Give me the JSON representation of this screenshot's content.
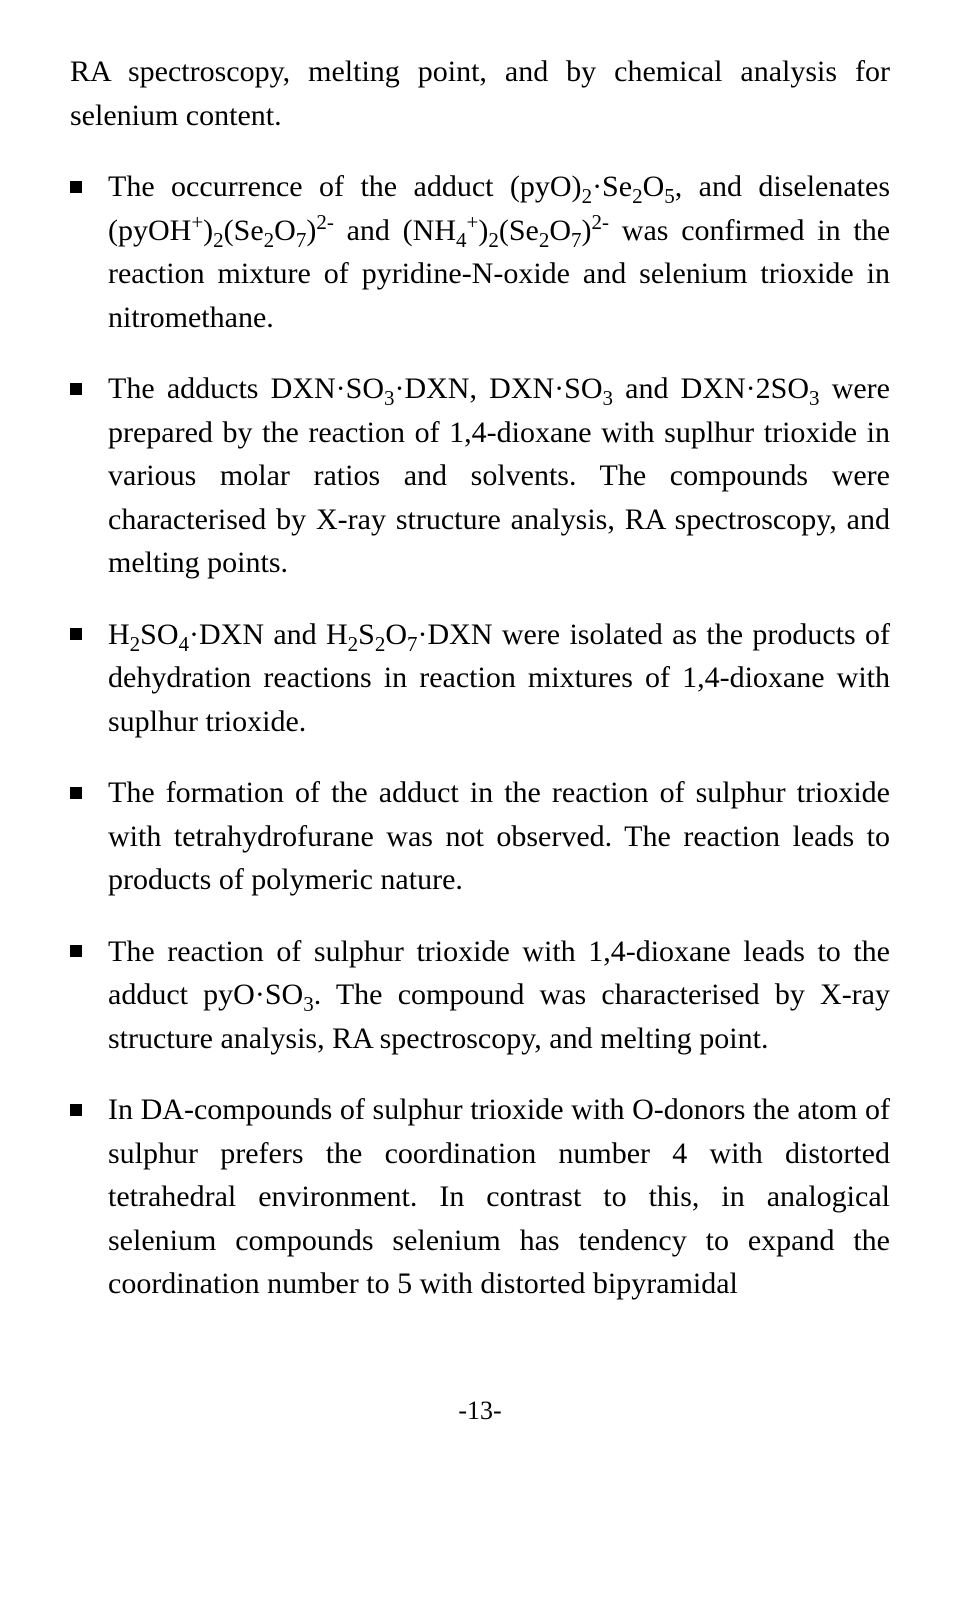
{
  "continuation": "RA spectroscopy, melting point, and by chemical analysis for selenium content.",
  "bullets": {
    "b1": {
      "p1": "The occurrence of the adduct (pyO)",
      "p2": "·Se",
      "p3": "O",
      "p4": ", and diselenates (pyOH",
      "p5": ")",
      "p6": "(Se",
      "p7": "O",
      "p8": ")",
      "p9": " and (NH",
      "p10": ")",
      "p11": "(Se",
      "p12": "O",
      "p13": ")",
      "p14": " was confirmed in the reaction mixture of pyridine-N-oxide and selenium trioxide in nitromethane."
    },
    "b2": {
      "p1": "The adducts DXN·SO",
      "p2": "·DXN, DXN·SO",
      "p3": " and DXN·2SO",
      "p4": " were prepared by the reaction of 1,4-dioxane with suplhur trioxide in various molar ratios and solvents. The compounds were characterised by X-ray structure analysis, RA spectroscopy, and melting points."
    },
    "b3": {
      "p1": "H",
      "p2": "SO",
      "p3": "·DXN and H",
      "p4": "S",
      "p5": "O",
      "p6": "·DXN were isolated as the products of dehydration reactions in reaction mixtures of 1,4-dioxane with suplhur trioxide."
    },
    "b4": "The formation of the adduct in the reaction of sulphur trioxide with tetrahydrofurane was not observed. The reaction leads to products of polymeric nature.",
    "b5": {
      "p1": "The reaction of sulphur trioxide with 1,4-dioxane leads to the adduct pyO·SO",
      "p2": ". The compound was characterised by X-ray structure analysis, RA spectroscopy, and melting point."
    },
    "b6": "In DA-compounds of sulphur trioxide with O-donors the atom of sulphur prefers the coordination number 4 with distorted tetrahedral environment. In contrast to this, in analogical selenium compounds selenium has tendency to expand the coordination number to 5 with distorted bipyramidal"
  },
  "subscripts": {
    "n2": "2",
    "n3": "3",
    "n4": "4",
    "n5": "5",
    "n7": "7"
  },
  "superscripts": {
    "plus": "+",
    "twominus": "2-"
  },
  "pageNumber": "-13-"
}
